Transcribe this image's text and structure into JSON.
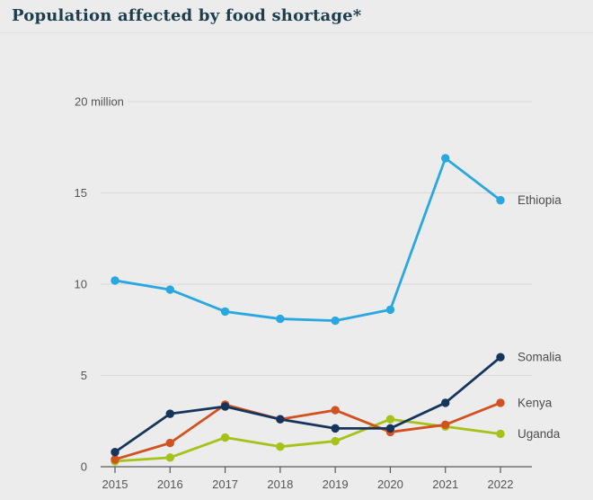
{
  "header": {
    "title": "Population affected by food shortage*"
  },
  "chart_data": {
    "type": "line",
    "x": [
      "2015",
      "2016",
      "2017",
      "2018",
      "2019",
      "2020",
      "2021",
      "2022"
    ],
    "series": [
      {
        "name": "Ethiopia",
        "color": "#29a7e1",
        "values": [
          10.2,
          9.7,
          8.5,
          8.1,
          8.0,
          8.6,
          16.9,
          14.6
        ]
      },
      {
        "name": "Somalia",
        "color": "#16355a",
        "values": [
          0.8,
          2.9,
          3.3,
          2.6,
          2.1,
          2.1,
          3.5,
          6.0
        ]
      },
      {
        "name": "Kenya",
        "color": "#d2521f",
        "values": [
          0.4,
          1.3,
          3.4,
          2.6,
          3.1,
          1.9,
          2.3,
          3.5
        ]
      },
      {
        "name": "Uganda",
        "color": "#a5c218",
        "values": [
          0.3,
          0.5,
          1.6,
          1.1,
          1.4,
          2.6,
          2.2,
          1.8
        ]
      }
    ],
    "y_ticks": [
      0,
      5,
      10,
      15,
      20
    ],
    "y_tick_labels": [
      "0",
      "5",
      "10",
      "15",
      "20 million"
    ],
    "ylim": [
      0,
      20
    ],
    "grid": true,
    "legend_position": "end-of-line"
  },
  "colors": {
    "background": "#ececec",
    "title": "#1c3e4e",
    "grid": "#d8d8d8",
    "axis": "#5a5a5a",
    "tick_text": "#555555",
    "label_text": "#4d4d4d",
    "divider": "#dfdfdf"
  }
}
